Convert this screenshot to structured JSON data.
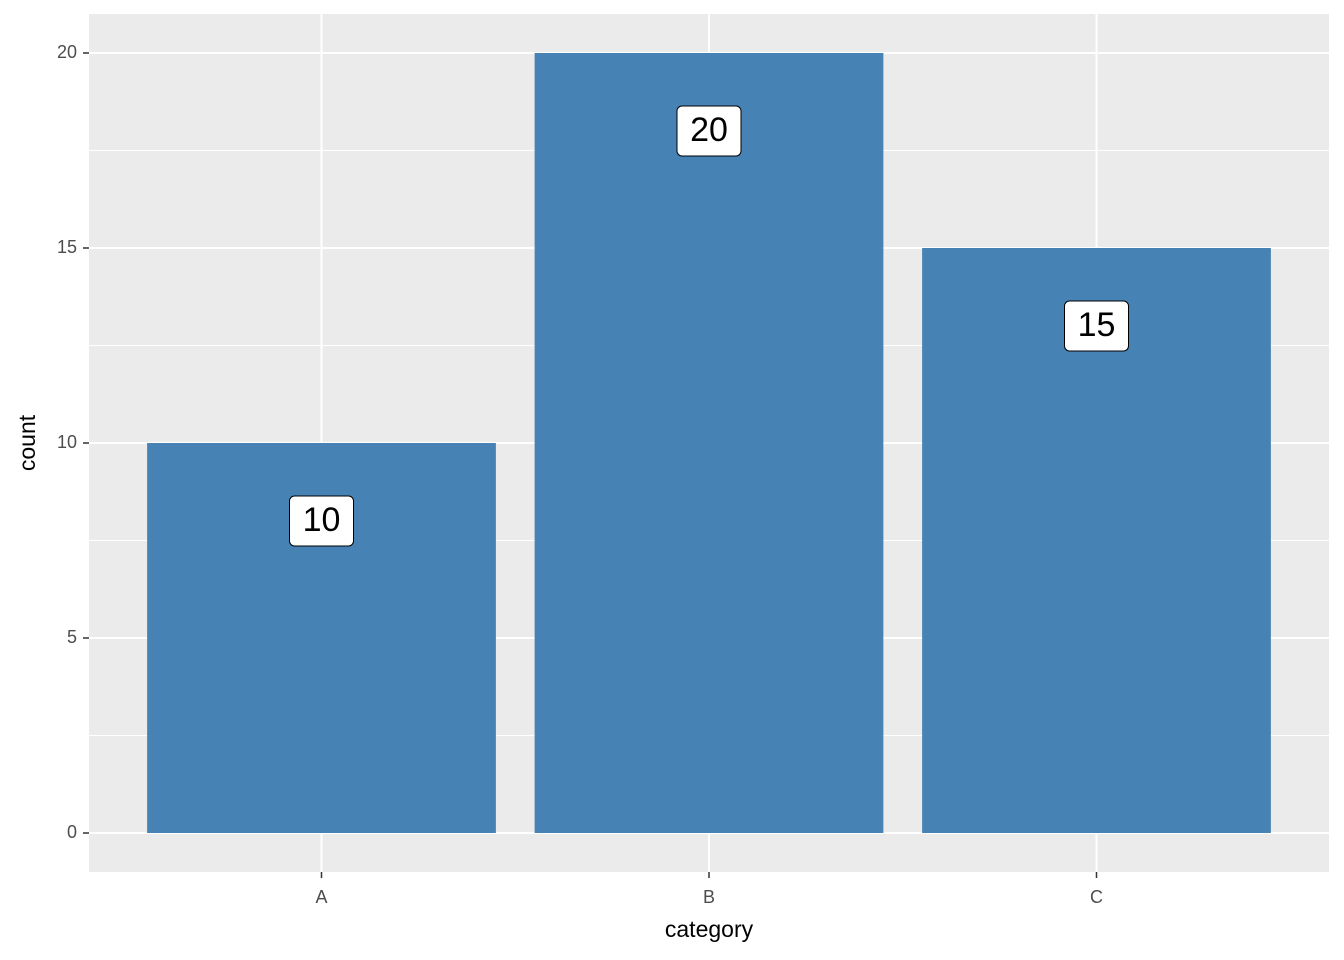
{
  "chart_data": {
    "type": "bar",
    "x_label": "category",
    "y_label": "count",
    "categories": [
      "A",
      "B",
      "C"
    ],
    "values": [
      10,
      20,
      15
    ],
    "color": "#4682b4",
    "ylim": [
      -1,
      21
    ],
    "yticks": [
      0,
      5,
      10,
      15,
      20
    ],
    "grid": true
  }
}
